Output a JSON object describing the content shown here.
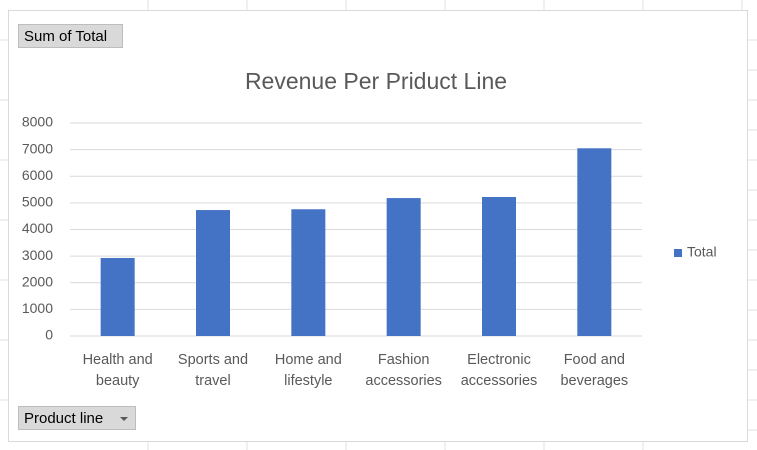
{
  "pivot_buttons": {
    "values_field": "Sum of Total",
    "axis_field": "Product line"
  },
  "chart_data": {
    "type": "bar",
    "title": "Revenue Per Priduct Line",
    "categories": [
      "Health and beauty",
      "Sports and travel",
      "Home and lifestyle",
      "Fashion accessories",
      "Electronic accessories",
      "Food and beverages"
    ],
    "series": [
      {
        "name": "Total",
        "color": "#4472c4",
        "values": [
          2930,
          4730,
          4760,
          5180,
          5220,
          7050
        ]
      }
    ],
    "ylim": [
      0,
      8000
    ],
    "yticks": [
      0,
      1000,
      2000,
      3000,
      4000,
      5000,
      6000,
      7000,
      8000
    ],
    "grid": true,
    "legend": "right"
  }
}
